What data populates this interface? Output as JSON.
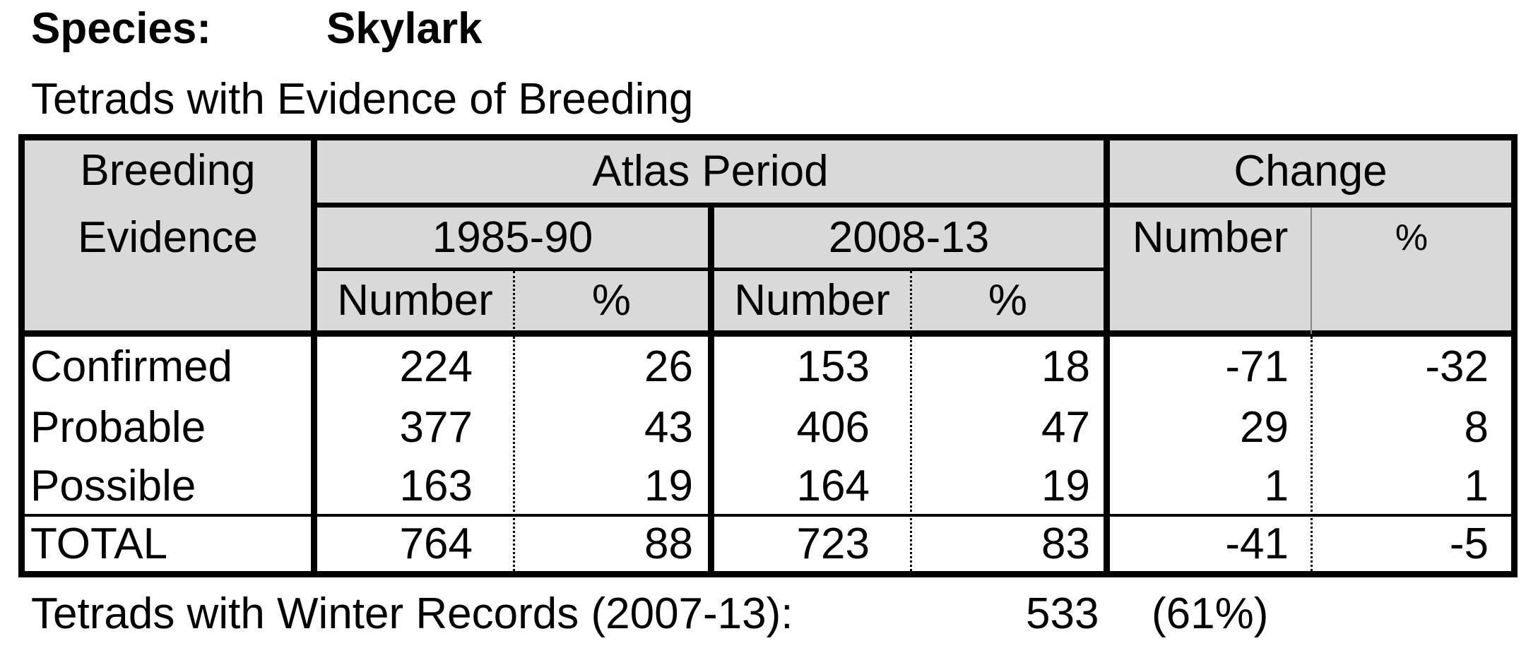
{
  "header": {
    "species_label": "Species:",
    "species_name": "Skylark",
    "subtitle": "Tetrads with Evidence of Breeding"
  },
  "table": {
    "breeding_evidence_line1": "Breeding",
    "breeding_evidence_line2": "Evidence",
    "atlas_period": "Atlas Period",
    "change": "Change",
    "period_1": "1985-90",
    "period_2": "2008-13",
    "number_label": "Number",
    "percent_label": "%",
    "rows": [
      {
        "category": "Confirmed",
        "p1_number": "224",
        "p1_percent": "26",
        "p2_number": "153",
        "p2_percent": "18",
        "change_number": "-71",
        "change_percent": "-32"
      },
      {
        "category": "Probable",
        "p1_number": "377",
        "p1_percent": "43",
        "p2_number": "406",
        "p2_percent": "47",
        "change_number": "29",
        "change_percent": "8"
      },
      {
        "category": "Possible",
        "p1_number": "163",
        "p1_percent": "19",
        "p2_number": "164",
        "p2_percent": "19",
        "change_number": "1",
        "change_percent": "1"
      }
    ],
    "total": {
      "category": "TOTAL",
      "p1_number": "764",
      "p1_percent": "88",
      "p2_number": "723",
      "p2_percent": "83",
      "change_number": "-41",
      "change_percent": "-5"
    }
  },
  "footer": {
    "winter_label": "Tetrads with Winter Records (2007-13):",
    "winter_count": "533",
    "winter_percent": "(61%)"
  }
}
